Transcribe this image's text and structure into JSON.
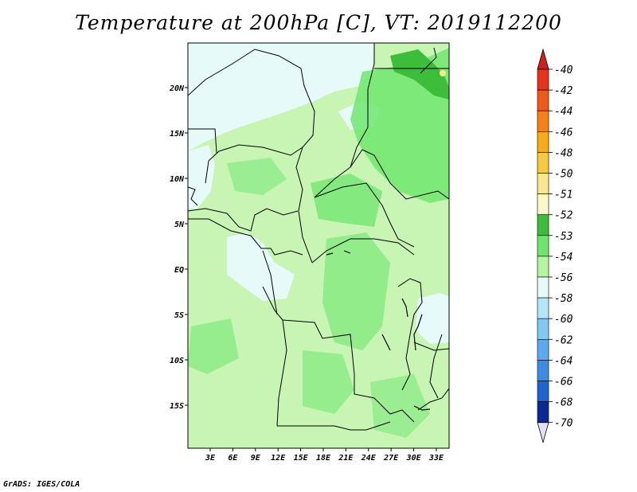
{
  "title": "Temperature at 200hPa [C], VT: 2019112200",
  "credit": "GrADS: IGES/COLA",
  "map": {
    "lat_ticks": [
      "20N",
      "15N",
      "10N",
      "5N",
      "EQ",
      "5S",
      "10S",
      "15S"
    ],
    "lon_ticks": [
      "3E",
      "6E",
      "9E",
      "12E",
      "15E",
      "18E",
      "21E",
      "24E",
      "27E",
      "30E",
      "33E"
    ],
    "background_color": "#c8f5b4"
  },
  "colorbar": {
    "levels": [
      {
        "label": "-40",
        "color": "#e8321e"
      },
      {
        "label": "-42",
        "color": "#f05a14"
      },
      {
        "label": "-44",
        "color": "#f58214"
      },
      {
        "label": "-46",
        "color": "#faaa14"
      },
      {
        "label": "-48",
        "color": "#fac83c"
      },
      {
        "label": "-50",
        "color": "#fae68c"
      },
      {
        "label": "-51",
        "color": "#fafac8"
      },
      {
        "label": "-52",
        "color": "#3cbe3c"
      },
      {
        "label": "-53",
        "color": "#6ee66e"
      },
      {
        "label": "-54",
        "color": "#b4f5a0"
      },
      {
        "label": "-56",
        "color": "#e6fafa"
      },
      {
        "label": "-58",
        "color": "#b4e6fa"
      },
      {
        "label": "-60",
        "color": "#82c8f5"
      },
      {
        "label": "-62",
        "color": "#5aaaf0"
      },
      {
        "label": "-64",
        "color": "#3c8ce6"
      },
      {
        "label": "-66",
        "color": "#1e64d2"
      },
      {
        "label": "-68",
        "color": "#1446b4"
      },
      {
        "label": "-70",
        "color": "#0a2896"
      }
    ],
    "top_cap_color": "#d21e1e",
    "bottom_cap_color": "#e1e1f5"
  }
}
